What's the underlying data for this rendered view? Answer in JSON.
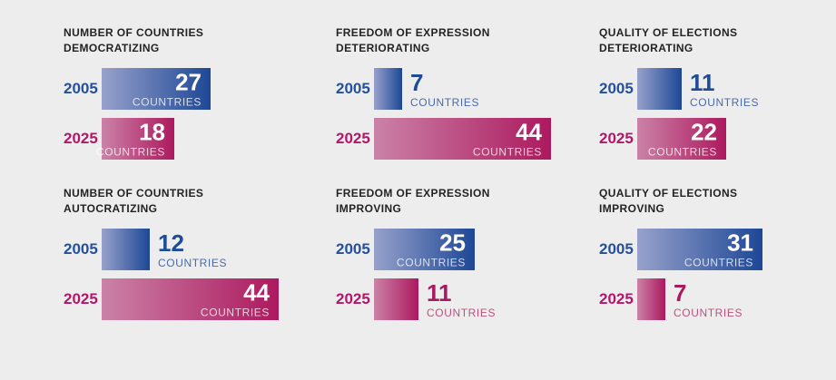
{
  "page": {
    "background": "#ededed"
  },
  "labels": {
    "unit": "COUNTRIES"
  },
  "colors": {
    "bar_blue_light": "#97a1cb",
    "bar_blue_dark": "#1d4796",
    "bar_pink_light": "#cb82a7",
    "bar_pink_dark": "#ac195e",
    "year_label_blue": "#24509d",
    "year_label_pink": "#b3176a",
    "outside_number_blue": "#1e4c99",
    "outside_unit_blue": "#4a6aab",
    "outside_number_pink": "#a81b60",
    "outside_unit_pink": "#b9527f",
    "title_text": "#232323",
    "inside_number": "#ffffff"
  },
  "chart_data": [
    {
      "type": "bar",
      "title": "Number of Countries Democratizing",
      "title_line1": "NUMBER OF COUNTRIES",
      "title_line2": "DEMOCRATIZING",
      "categories": [
        "2005",
        "2025"
      ],
      "values": [
        27,
        18
      ],
      "unit": "COUNTRIES",
      "orientation": "horizontal",
      "xlim": [
        0,
        48
      ]
    },
    {
      "type": "bar",
      "title": "Freedom of Expression Deteriorating",
      "title_line1": "FREEDOM OF EXPRESSION",
      "title_line2": "DETERIORATING",
      "categories": [
        "2005",
        "2025"
      ],
      "values": [
        7,
        44
      ],
      "unit": "COUNTRIES",
      "orientation": "horizontal",
      "xlim": [
        0,
        48
      ]
    },
    {
      "type": "bar",
      "title": "Quality of Elections Deteriorating",
      "title_line1": "QUALITY OF ELECTIONS",
      "title_line2": "DETERIORATING",
      "categories": [
        "2005",
        "2025"
      ],
      "values": [
        11,
        22
      ],
      "unit": "COUNTRIES",
      "orientation": "horizontal",
      "xlim": [
        0,
        48
      ]
    },
    {
      "type": "bar",
      "title": "Number of Countries Autocratizing",
      "title_line1": "NUMBER OF COUNTRIES",
      "title_line2": "AUTOCRATIZING",
      "categories": [
        "2005",
        "2025"
      ],
      "values": [
        12,
        44
      ],
      "unit": "COUNTRIES",
      "orientation": "horizontal",
      "xlim": [
        0,
        48
      ]
    },
    {
      "type": "bar",
      "title": "Freedom of Expression Improving",
      "title_line1": "FREEDOM OF EXPRESSION",
      "title_line2": "IMPROVING",
      "categories": [
        "2005",
        "2025"
      ],
      "values": [
        25,
        11
      ],
      "unit": "COUNTRIES",
      "orientation": "horizontal",
      "xlim": [
        0,
        48
      ]
    },
    {
      "type": "bar",
      "title": "Quality of Elections Improving",
      "title_line1": "QUALITY OF ELECTIONS",
      "title_line2": "IMPROVING",
      "categories": [
        "2005",
        "2025"
      ],
      "values": [
        31,
        7
      ],
      "unit": "COUNTRIES",
      "orientation": "horizontal",
      "xlim": [
        0,
        48
      ]
    }
  ]
}
